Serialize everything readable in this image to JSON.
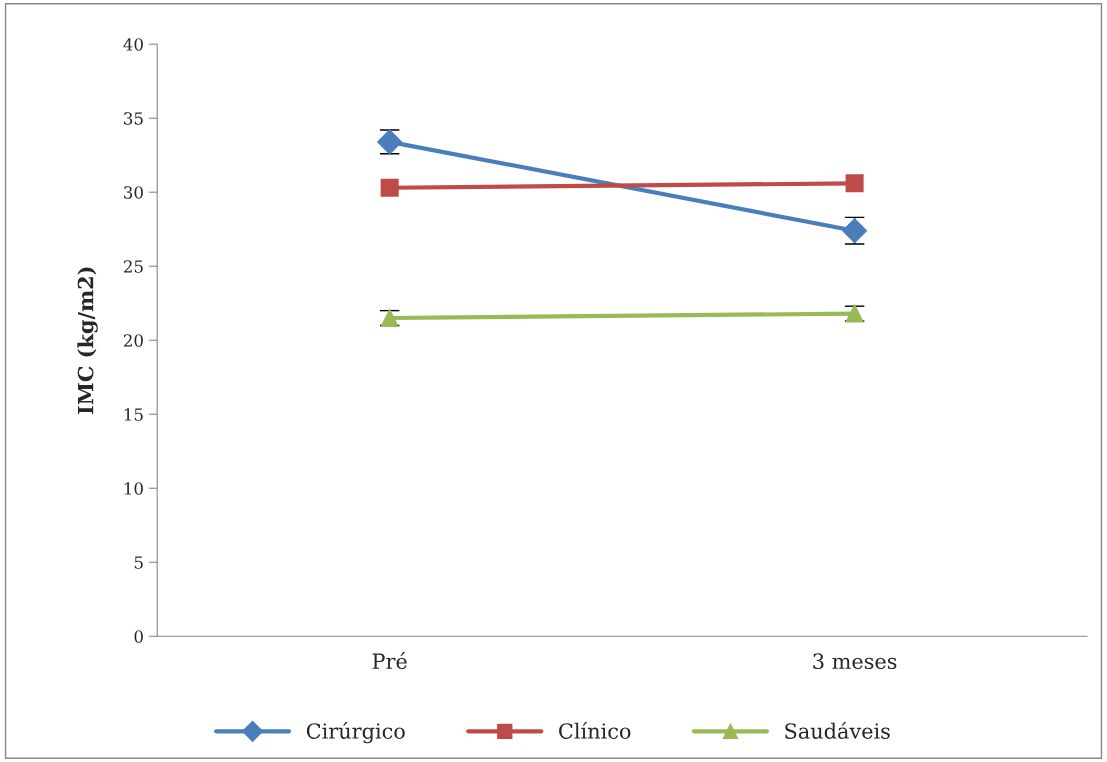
{
  "chart_data": {
    "type": "line",
    "ylabel": "IMC (kg/m2)",
    "categories": [
      "Pré",
      "3 meses"
    ],
    "series": [
      {
        "name": "Cirúrgico",
        "color": "#4a7ebb",
        "marker": "diamond",
        "values": [
          33.4,
          27.4
        ],
        "errors": [
          0.8,
          0.9
        ]
      },
      {
        "name": "Clínico",
        "color": "#be4b48",
        "marker": "square",
        "values": [
          30.3,
          30.6
        ]
      },
      {
        "name": "Saudáveis",
        "color": "#98b954",
        "marker": "triangle",
        "values": [
          21.5,
          21.8
        ],
        "errors": [
          0.5,
          0.5
        ]
      }
    ],
    "ylim": [
      0,
      40
    ],
    "yticks": [
      0,
      5,
      10,
      15,
      20,
      25,
      30,
      35,
      40
    ],
    "grid": false,
    "legend": "bottom",
    "line_style": "solid"
  }
}
